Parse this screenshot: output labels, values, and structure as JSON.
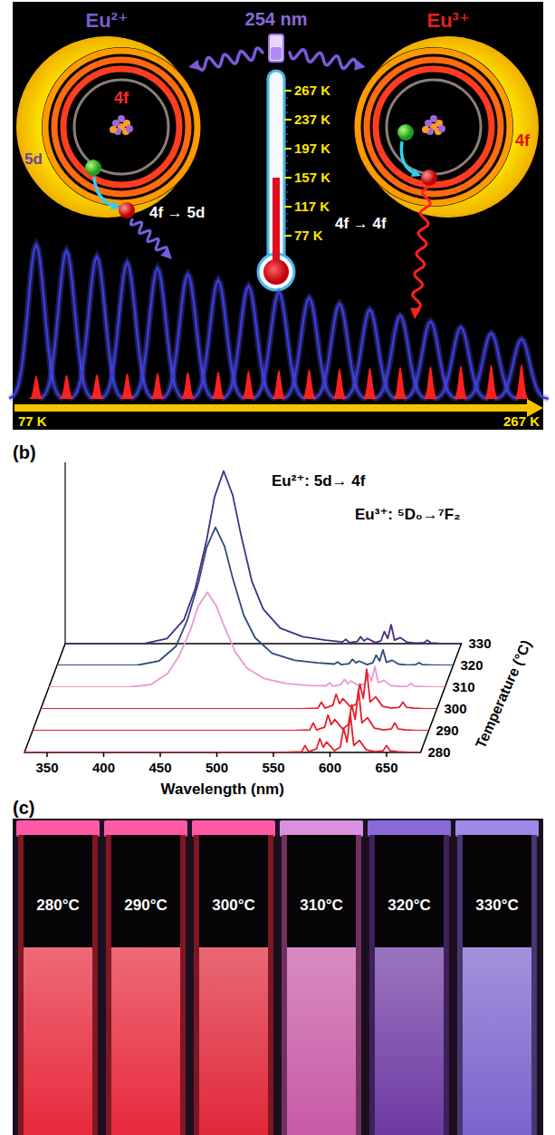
{
  "panel_a": {
    "ion_left": "Eu²⁺",
    "ion_right": "Eu³⁺",
    "excitation": "254 nm",
    "shell_outer": "5d",
    "shell_left_inner": "4f",
    "shell_right_inner": "4f",
    "transition_left": "4f → 5d",
    "transition_right": "4f → 4f",
    "thermometer_ticks": [
      "267 K",
      "237 K",
      "197 K",
      "157 K",
      "117 K",
      "77 K"
    ],
    "arrow_start": "77 K",
    "arrow_end": "267 K"
  },
  "chart_data": {
    "type": "line",
    "panel_label": "(b)",
    "xlabel": "Wavelength (nm)",
    "zlabel": "Temperature (°C)",
    "annotations": [
      "Eu²⁺: 5d→ 4f",
      "Eu³⁺: ⁵D₀→⁷F₂"
    ],
    "x": [
      330,
      360,
      400,
      420,
      435,
      445,
      455,
      462,
      470,
      478,
      485,
      495,
      505,
      520,
      540,
      560,
      575,
      578,
      581,
      588,
      591,
      594,
      597,
      604,
      609,
      612,
      615,
      618,
      621,
      626,
      632,
      640,
      647,
      650,
      653,
      660,
      670,
      680
    ],
    "xlim": [
      330,
      680
    ],
    "xticks": [
      350,
      400,
      450,
      500,
      550,
      600,
      650
    ],
    "ylim": [
      0,
      105
    ],
    "tick_labels": "x",
    "series": [
      {
        "name": "280",
        "color": "#e4202c",
        "values": [
          0,
          0,
          0,
          0,
          0,
          0,
          0,
          0,
          0,
          0,
          0,
          0,
          0,
          0,
          0,
          0,
          0.5,
          4,
          0.5,
          2,
          8,
          3,
          6,
          1,
          3,
          14,
          6,
          22,
          4,
          7,
          1.5,
          0.5,
          1,
          4,
          1,
          0.5,
          0,
          0
        ]
      },
      {
        "name": "290",
        "color": "#e4202c",
        "values": [
          0,
          0,
          0,
          0,
          0,
          0,
          0,
          0,
          0,
          0,
          0,
          0,
          0,
          0,
          0,
          0,
          0.5,
          4.5,
          0.5,
          2,
          9,
          3.5,
          6.5,
          1,
          3.5,
          15,
          6.5,
          24,
          4.5,
          7.5,
          1.5,
          0.5,
          1,
          4.5,
          1,
          0.5,
          0,
          0
        ]
      },
      {
        "name": "300",
        "color": "#e4202c",
        "values": [
          0,
          0,
          0,
          0,
          0,
          0,
          0,
          0,
          0,
          0,
          0,
          0,
          0,
          0,
          0,
          0,
          0.5,
          4,
          0.5,
          2,
          8.5,
          3,
          6,
          1,
          3,
          14.5,
          6,
          23,
          4,
          7,
          1.5,
          0.5,
          1,
          4,
          1,
          0.5,
          0,
          0
        ]
      },
      {
        "name": "310",
        "color": "#e89ad0",
        "values": [
          0,
          0,
          0,
          1.5,
          8,
          18,
          33,
          47,
          55,
          47,
          35,
          20,
          11,
          5,
          2,
          1,
          0.8,
          2.5,
          0.6,
          1.5,
          4.5,
          2,
          3.5,
          0.8,
          2,
          8,
          3.5,
          12,
          2.5,
          4,
          1,
          0.3,
          0.6,
          2.2,
          0.6,
          0.3,
          0,
          0
        ]
      },
      {
        "name": "320",
        "color": "#2f4a7c",
        "values": [
          0,
          0,
          0,
          2.5,
          11,
          26,
          48,
          68,
          80,
          69,
          51,
          29,
          16,
          7,
          3,
          1.5,
          0.8,
          2,
          0.5,
          1,
          3.5,
          1.5,
          2.5,
          0.5,
          1.5,
          6,
          2.5,
          9,
          1.8,
          3,
          0.7,
          0.2,
          0.5,
          1.6,
          0.4,
          0.2,
          0,
          0
        ]
      },
      {
        "name": "330",
        "color": "#4a2c86",
        "values": [
          0,
          0,
          0,
          3,
          14,
          32,
          60,
          85,
          100,
          86,
          64,
          36,
          20,
          9,
          4,
          2,
          1,
          2.5,
          0.6,
          1.2,
          4,
          1.6,
          3,
          0.6,
          1.6,
          7,
          3,
          11,
          2,
          3.5,
          0.8,
          0.3,
          0.6,
          2,
          0.5,
          0.2,
          0,
          0
        ]
      }
    ]
  },
  "panel_c": {
    "panel_label": "(c)",
    "labels": [
      "280°C",
      "290°C",
      "300°C",
      "310°C",
      "320°C",
      "330°C"
    ]
  }
}
